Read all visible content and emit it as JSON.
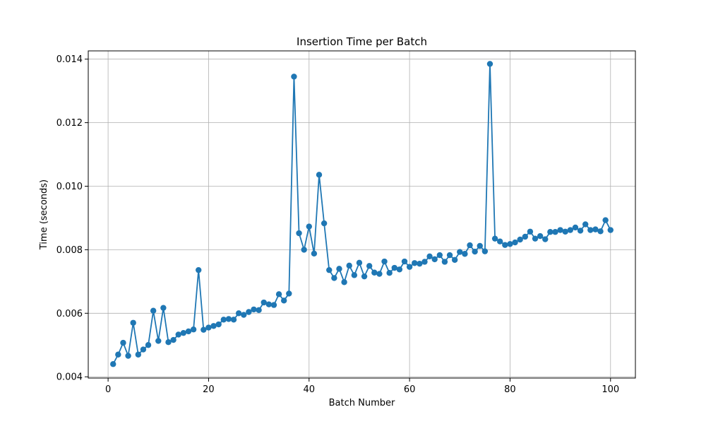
{
  "chart_data": {
    "type": "line",
    "title": "Insertion Time per Batch",
    "xlabel": "Batch Number",
    "ylabel": "Time (seconds)",
    "xlim": [
      -3.95,
      104.95
    ],
    "ylim": [
      0.00396,
      0.01426
    ],
    "xticks": [
      0,
      20,
      40,
      60,
      80,
      100
    ],
    "yticks": [
      0.004,
      0.006,
      0.008,
      0.01,
      0.012,
      0.014
    ],
    "xtick_labels": [
      "0",
      "20",
      "40",
      "60",
      "80",
      "100"
    ],
    "ytick_labels": [
      "0.004",
      "0.006",
      "0.008",
      "0.010",
      "0.012",
      "0.014"
    ],
    "grid": true,
    "series_color": "#1f77b4",
    "marker": "circle",
    "series": [
      {
        "x": [
          1,
          2,
          3,
          4,
          5,
          6,
          7,
          8,
          9,
          10,
          11,
          12,
          13,
          14,
          15,
          16,
          17,
          18,
          19,
          20,
          21,
          22,
          23,
          24,
          25,
          26,
          27,
          28,
          29,
          30,
          31,
          32,
          33,
          34,
          35,
          36,
          37,
          38,
          39,
          40,
          41,
          42,
          43,
          44,
          45,
          46,
          47,
          48,
          49,
          50,
          51,
          52,
          53,
          54,
          55,
          56,
          57,
          58,
          59,
          60,
          61,
          62,
          63,
          64,
          65,
          66,
          67,
          68,
          69,
          70,
          71,
          72,
          73,
          74,
          75,
          76,
          77,
          78,
          79,
          80,
          81,
          82,
          83,
          84,
          85,
          86,
          87,
          88,
          89,
          90,
          91,
          92,
          93,
          94,
          95,
          96,
          97,
          98,
          99,
          100
        ],
        "values": [
          0.0044,
          0.0047,
          0.00507,
          0.00466,
          0.0057,
          0.0047,
          0.00486,
          0.005,
          0.00608,
          0.00513,
          0.00617,
          0.00509,
          0.00516,
          0.00533,
          0.00538,
          0.00543,
          0.00549,
          0.00736,
          0.00548,
          0.00555,
          0.0056,
          0.00565,
          0.0058,
          0.00582,
          0.0058,
          0.006,
          0.00595,
          0.00604,
          0.00612,
          0.0061,
          0.00634,
          0.00628,
          0.00626,
          0.0066,
          0.0064,
          0.00662,
          0.01345,
          0.00852,
          0.008,
          0.00873,
          0.00788,
          0.01036,
          0.00883,
          0.00736,
          0.00711,
          0.0074,
          0.00698,
          0.0075,
          0.0072,
          0.00759,
          0.00716,
          0.00749,
          0.00728,
          0.00724,
          0.00763,
          0.00727,
          0.00743,
          0.00738,
          0.00763,
          0.00746,
          0.00758,
          0.00756,
          0.00762,
          0.00779,
          0.0077,
          0.00783,
          0.00762,
          0.00783,
          0.00768,
          0.00793,
          0.00787,
          0.00814,
          0.00794,
          0.00812,
          0.00795,
          0.01385,
          0.00835,
          0.00826,
          0.00815,
          0.00818,
          0.00823,
          0.00832,
          0.00841,
          0.00857,
          0.00835,
          0.00843,
          0.00833,
          0.00856,
          0.00856,
          0.00862,
          0.00857,
          0.00862,
          0.0087,
          0.0086,
          0.0088,
          0.00862,
          0.00864,
          0.00858,
          0.00893,
          0.00862
        ]
      }
    ]
  }
}
